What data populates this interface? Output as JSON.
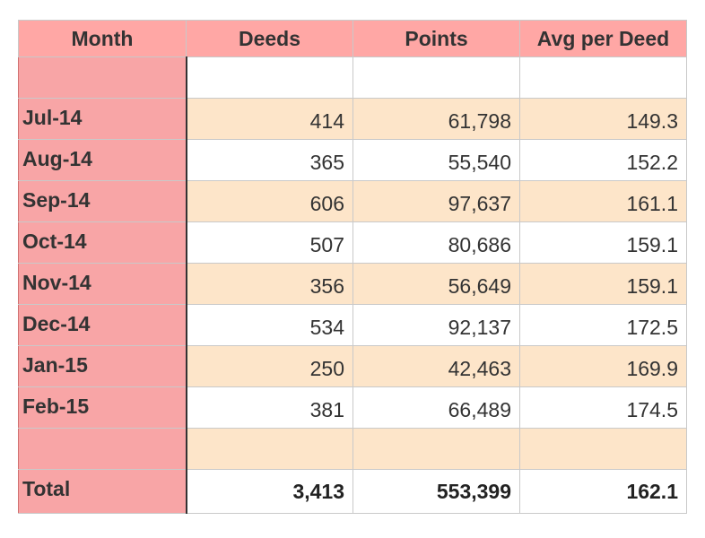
{
  "table": {
    "headers": [
      "Month",
      "Deeds",
      "Points",
      "Avg per Deed"
    ],
    "rows": [
      {
        "month": "Jul-14",
        "deeds": "414",
        "points": "61,798",
        "avg": "149.3"
      },
      {
        "month": "Aug-14",
        "deeds": "365",
        "points": "55,540",
        "avg": "152.2"
      },
      {
        "month": "Sep-14",
        "deeds": "606",
        "points": "97,637",
        "avg": "161.1"
      },
      {
        "month": "Oct-14",
        "deeds": "507",
        "points": "80,686",
        "avg": "159.1"
      },
      {
        "month": "Nov-14",
        "deeds": "356",
        "points": "56,649",
        "avg": "159.1"
      },
      {
        "month": "Dec-14",
        "deeds": "534",
        "points": "92,137",
        "avg": "172.5"
      },
      {
        "month": "Jan-15",
        "deeds": "250",
        "points": "42,463",
        "avg": "169.9"
      },
      {
        "month": "Feb-15",
        "deeds": "381",
        "points": "66,489",
        "avg": "174.5"
      }
    ],
    "total": {
      "label": "Total",
      "deeds": "3,413",
      "points": "553,399",
      "avg": "162.1"
    }
  },
  "colors": {
    "header_bg": "#ffa7a5",
    "month_column_bg": "#f8a5a6",
    "band_bg": "#fde5c9",
    "plain_bg": "#ffffff"
  }
}
